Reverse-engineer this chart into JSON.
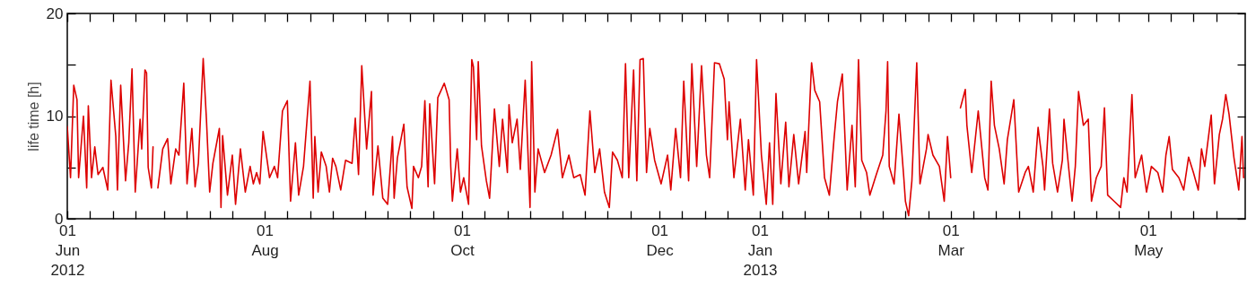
{
  "chart_data": {
    "type": "line",
    "ylabel": "life time [h]",
    "color": "#dd0000",
    "xlim": [
      "2012-06-01",
      "2013-05-31"
    ],
    "xticks": [
      {
        "value": "2012-06-01",
        "label": "01\nJun\n2012"
      },
      {
        "value": "2012-06-08",
        "label": null
      },
      {
        "value": "2012-06-15",
        "label": null
      },
      {
        "value": "2012-06-22",
        "label": null
      },
      {
        "value": "2012-07-01",
        "label": null
      },
      {
        "value": "2012-07-08",
        "label": null
      },
      {
        "value": "2012-07-15",
        "label": null
      },
      {
        "value": "2012-07-22",
        "label": null
      },
      {
        "value": "2012-08-01",
        "label": "01\nAug"
      },
      {
        "value": "2012-08-08",
        "label": null
      },
      {
        "value": "2012-08-15",
        "label": null
      },
      {
        "value": "2012-08-22",
        "label": null
      },
      {
        "value": "2012-09-01",
        "label": null
      },
      {
        "value": "2012-09-08",
        "label": null
      },
      {
        "value": "2012-09-15",
        "label": null
      },
      {
        "value": "2012-09-22",
        "label": null
      },
      {
        "value": "2012-10-01",
        "label": "01\nOct"
      },
      {
        "value": "2012-10-08",
        "label": null
      },
      {
        "value": "2012-10-15",
        "label": null
      },
      {
        "value": "2012-10-22",
        "label": null
      },
      {
        "value": "2012-11-01",
        "label": null
      },
      {
        "value": "2012-11-08",
        "label": null
      },
      {
        "value": "2012-11-15",
        "label": null
      },
      {
        "value": "2012-11-22",
        "label": null
      },
      {
        "value": "2012-12-01",
        "label": "01\nDec"
      },
      {
        "value": "2012-12-08",
        "label": null
      },
      {
        "value": "2012-12-15",
        "label": null
      },
      {
        "value": "2012-12-22",
        "label": null
      },
      {
        "value": "2013-01-01",
        "label": "01\nJan\n2013"
      },
      {
        "value": "2013-01-08",
        "label": null
      },
      {
        "value": "2013-01-15",
        "label": null
      },
      {
        "value": "2013-01-22",
        "label": null
      },
      {
        "value": "2013-02-01",
        "label": null
      },
      {
        "value": "2013-02-08",
        "label": null
      },
      {
        "value": "2013-02-15",
        "label": null
      },
      {
        "value": "2013-02-22",
        "label": null
      },
      {
        "value": "2013-03-01",
        "label": "01\nMar"
      },
      {
        "value": "2013-03-08",
        "label": null
      },
      {
        "value": "2013-03-15",
        "label": null
      },
      {
        "value": "2013-03-22",
        "label": null
      },
      {
        "value": "2013-04-01",
        "label": null
      },
      {
        "value": "2013-04-08",
        "label": null
      },
      {
        "value": "2013-04-15",
        "label": null
      },
      {
        "value": "2013-04-22",
        "label": null
      },
      {
        "value": "2013-05-01",
        "label": "01\nMay"
      },
      {
        "value": "2013-05-08",
        "label": null
      },
      {
        "value": "2013-05-15",
        "label": null
      },
      {
        "value": "2013-05-22",
        "label": null
      }
    ],
    "ylim": [
      0,
      20
    ],
    "yticks": [
      0,
      {
        "value": 5,
        "label": null
      },
      10,
      {
        "value": 15,
        "label": null
      },
      20
    ],
    "x": [
      "2012-06-01T00:00",
      "2012-06-02T00:00",
      "2012-06-03T00:00",
      "2012-06-04T00:00",
      "2012-06-04T12:00",
      "2012-06-06T00:00",
      "2012-06-07T00:00",
      "2012-06-07T12:00",
      "2012-06-08T12:00",
      "2012-06-09T12:00",
      "2012-06-10T12:00",
      "2012-06-12T00:00",
      "2012-06-13T12:00",
      "2012-06-14T12:00",
      "2012-06-16T00:00",
      "2012-06-16T12:00",
      "2012-06-17T12:00",
      "2012-06-19T00:00",
      "2012-06-20T00:00",
      "2012-06-21T00:00",
      "2012-06-22T00:00",
      "2012-06-23T12:00",
      "2012-06-24T00:00",
      "2012-06-25T00:00",
      "2012-06-25T12:00",
      "2012-06-26T00:00",
      "2012-06-27T00:00",
      "2012-06-27T12:00",
      "2012-06-28T00:00",
      "2012-06-29T00:00",
      "2012-06-30T12:00",
      "2012-07-02T00:00",
      "2012-07-03T00:00",
      "2012-07-04T12:00",
      "2012-07-05T12:00",
      "2012-07-07T00:00",
      "2012-07-08T00:00",
      "2012-07-09T12:00",
      "2012-07-10T12:00",
      "2012-07-11T12:00",
      "2012-07-13T00:00",
      "2012-07-14T00:00",
      "2012-07-15T00:00",
      "2012-07-16T00:00",
      "2012-07-18T00:00",
      "2012-07-18T12:00",
      "2012-07-19T00:00",
      "2012-07-20T12:00",
      "2012-07-22T00:00",
      "2012-07-23T00:00",
      "2012-07-24T12:00",
      "2012-07-26T00:00",
      "2012-07-27T12:00",
      "2012-07-28T12:00",
      "2012-07-29T12:00",
      "2012-07-30T12:00",
      "2012-07-31T12:00",
      "2012-08-02T12:00",
      "2012-08-04T00:00",
      "2012-08-05T00:00",
      "2012-08-06T12:00",
      "2012-08-08T00:00",
      "2012-08-09T00:00",
      "2012-08-10T12:00",
      "2012-08-11T12:00",
      "2012-08-13T00:00",
      "2012-08-15T00:00",
      "2012-08-16T00:00",
      "2012-08-16T12:00",
      "2012-08-17T12:00",
      "2012-08-18T12:00",
      "2012-08-20T00:00",
      "2012-08-21T00:00",
      "2012-08-22T00:00",
      "2012-08-23T00:00",
      "2012-08-24T12:00",
      "2012-08-26T00:00",
      "2012-08-28T00:00",
      "2012-08-29T00:00",
      "2012-08-30T00:00",
      "2012-08-31T00:00",
      "2012-09-01T12:00",
      "2012-09-03T00:00",
      "2012-09-03T12:00",
      "2012-09-05T00:00",
      "2012-09-06T12:00",
      "2012-09-08T00:00",
      "2012-09-09T12:00",
      "2012-09-10T00:00",
      "2012-09-11T00:00",
      "2012-09-13T00:00",
      "2012-09-14T00:00",
      "2012-09-15T12:00",
      "2012-09-16T00:00",
      "2012-09-17T12:00",
      "2012-09-18T12:00",
      "2012-09-19T12:00",
      "2012-09-20T12:00",
      "2012-09-21T00:00",
      "2012-09-22T12:00",
      "2012-09-23T12:00",
      "2012-09-25T12:00",
      "2012-09-27T00:00",
      "2012-09-27T12:00",
      "2012-09-28T00:00",
      "2012-09-29T12:00",
      "2012-09-30T12:00",
      "2012-10-01T12:00",
      "2012-10-03T00:00",
      "2012-10-04T00:00",
      "2012-10-04T12:00",
      "2012-10-05T12:00",
      "2012-10-06T00:00",
      "2012-10-07T00:00",
      "2012-10-08T12:00",
      "2012-10-09T12:00",
      "2012-10-11T00:00",
      "2012-10-12T12:00",
      "2012-10-13T12:00",
      "2012-10-15T00:00",
      "2012-10-15T12:00",
      "2012-10-16T12:00",
      "2012-10-18T00:00",
      "2012-10-19T00:00",
      "2012-10-20T12:00",
      "2012-10-22T00:00",
      "2012-10-22T12:00",
      "2012-10-23T12:00",
      "2012-10-24T12:00",
      "2012-10-26T12:00",
      "2012-10-28T12:00",
      "2012-10-30T12:00",
      "2012-11-01T00:00",
      "2012-11-03T00:00",
      "2012-11-04T12:00",
      "2012-11-06T12:00",
      "2012-11-08T00:00",
      "2012-11-09T12:00",
      "2012-11-11T00:00",
      "2012-11-12T12:00",
      "2012-11-14T00:00",
      "2012-11-15T12:00",
      "2012-11-16T12:00",
      "2012-11-18T00:00",
      "2012-11-19T12:00",
      "2012-11-20T12:00",
      "2012-11-21T12:00",
      "2012-11-23T00:00",
      "2012-11-24T00:00",
      "2012-11-25T00:00",
      "2012-11-26T00:00",
      "2012-11-27T00:00",
      "2012-11-28T00:00",
      "2012-11-29T12:00",
      "2012-12-01T12:00",
      "2012-12-03T12:00",
      "2012-12-04T12:00",
      "2012-12-06T00:00",
      "2012-12-07T12:00",
      "2012-12-08T12:00",
      "2012-12-10T00:00",
      "2012-12-11T00:00",
      "2012-12-12T12:00",
      "2012-12-14T00:00",
      "2012-12-15T12:00",
      "2012-12-16T12:00",
      "2012-12-18T00:00",
      "2012-12-19T12:00",
      "2012-12-21T00:00",
      "2012-12-22T00:00",
      "2012-12-22T12:00",
      "2012-12-24T00:00",
      "2012-12-26T00:00",
      "2012-12-27T12:00",
      "2012-12-28T12:00",
      "2012-12-30T00:00",
      "2012-12-31T00:00",
      "2013-01-01T12:00",
      "2013-01-03T00:00",
      "2013-01-04T00:00",
      "2013-01-05T00:00",
      "2013-01-06T00:00",
      "2013-01-07T12:00",
      "2013-01-09T00:00",
      "2013-01-10T00:00",
      "2013-01-11T12:00",
      "2013-01-13T00:00",
      "2013-01-15T00:00",
      "2013-01-15T12:00",
      "2013-01-17T00:00",
      "2013-01-18T00:00",
      "2013-01-19T12:00",
      "2013-01-21T00:00",
      "2013-01-22T12:00",
      "2013-01-24T00:00",
      "2013-01-25T00:00",
      "2013-01-26T12:00",
      "2013-01-28T00:00",
      "2013-01-29T12:00",
      "2013-01-30T12:00",
      "2013-01-31T12:00",
      "2013-02-01T12:00",
      "2013-02-03T00:00",
      "2013-02-04T00:00",
      "2013-02-06T00:00",
      "2013-02-08T00:00",
      "2013-02-09T00:00",
      "2013-02-09T12:00",
      "2013-02-10T00:00",
      "2013-02-11T12:00",
      "2013-02-13T00:00",
      "2013-02-14T12:00",
      "2013-02-15T00:00",
      "2013-02-16T00:00",
      "2013-02-17T00:00",
      "2013-02-18T12:00",
      "2013-02-19T12:00",
      "2013-02-21T12:00",
      "2013-02-22T00:00",
      "2013-02-23T12:00",
      "2013-02-25T12:00",
      "2013-02-27T00:00",
      "2013-02-28T00:00",
      "2013-03-01T00:00",
      "2013-03-02T00:00",
      "2013-03-04T00:00",
      "2013-03-05T12:00",
      "2013-03-06T00:00",
      "2013-03-07T12:00",
      "2013-03-09T12:00",
      "2013-03-11T12:00",
      "2013-03-12T12:00",
      "2013-03-13T12:00",
      "2013-03-14T12:00",
      "2013-03-16T00:00",
      "2013-03-17T12:00",
      "2013-03-18T12:00",
      "2013-03-20T12:00",
      "2013-03-22T00:00",
      "2013-03-24T00:00",
      "2013-03-25T00:00",
      "2013-03-26T12:00",
      "2013-03-28T00:00",
      "2013-03-29T12:00",
      "2013-03-30T00:00",
      "2013-03-31T12:00",
      "2013-04-01T12:00",
      "2013-04-03T00:00",
      "2013-04-04T12:00",
      "2013-04-05T00:00",
      "2013-04-06T12:00",
      "2013-04-07T12:00",
      "2013-04-08T12:00",
      "2013-04-09T12:00",
      "2013-04-11T00:00",
      "2013-04-12T12:00",
      "2013-04-13T12:00",
      "2013-04-15T00:00",
      "2013-04-16T12:00",
      "2013-04-17T12:00",
      "2013-04-18T12:00",
      "2013-04-20T12:00",
      "2013-04-22T12:00",
      "2013-04-23T12:00",
      "2013-04-24T12:00",
      "2013-04-26T00:00",
      "2013-04-27T00:00",
      "2013-04-29T00:00",
      "2013-04-30T12:00",
      "2013-05-02T00:00",
      "2013-05-04T00:00",
      "2013-05-05T12:00",
      "2013-05-06T12:00",
      "2013-05-07T12:00",
      "2013-05-08T12:00",
      "2013-05-10T12:00",
      "2013-05-12T00:00",
      "2013-05-13T12:00",
      "2013-05-15T00:00",
      "2013-05-16T12:00",
      "2013-05-17T12:00",
      "2013-05-18T12:00",
      "2013-05-20T12:00",
      "2013-05-21T12:00",
      "2013-05-23T00:00",
      "2013-05-24T00:00",
      "2013-05-25T00:00",
      "2013-05-26T00:00",
      "2013-05-27T12:00",
      "2013-05-29T00:00",
      "2013-05-30T00:00",
      "2013-05-30T12:00"
    ],
    "values": [
      9,
      4,
      13,
      11.6,
      4,
      10,
      3,
      11,
      4,
      7,
      4.3,
      5,
      2.8,
      13.5,
      8,
      2.8,
      13,
      3.7,
      7.4,
      14.6,
      2.6,
      9.7,
      6.8,
      14.5,
      14.2,
      5,
      3,
      7,
      null,
      3,
      6.8,
      7.8,
      3.4,
      6.8,
      6.2,
      13.2,
      3.4,
      8.8,
      3.1,
      5.4,
      15.6,
      9.7,
      2.6,
      5.4,
      8.8,
      1.1,
      8.1,
      2.3,
      6.2,
      1.4,
      6.8,
      2.6,
      5.1,
      3.4,
      4.5,
      3.4,
      8.5,
      4,
      5.1,
      4,
      10.5,
      11.5,
      1.7,
      7.4,
      2.3,
      5.1,
      13.4,
      2,
      8,
      2.6,
      6.5,
      5.1,
      2.6,
      5.9,
      5.1,
      2.8,
      5.7,
      5.4,
      9.8,
      4.3,
      14.9,
      6.8,
      12.4,
      2.3,
      7.1,
      2,
      1.4,
      8,
      2,
      5.9,
      9.2,
      3.1,
      1,
      5.1,
      4,
      5.1,
      11.5,
      3.1,
      11.2,
      3.4,
      11.8,
      13.2,
      11.6,
      5.1,
      1.7,
      6.8,
      2.6,
      4,
      1.4,
      15.5,
      14.8,
      7.7,
      15.3,
      7.1,
      3.7,
      2,
      10.7,
      5.1,
      9.7,
      4.5,
      11.1,
      7.4,
      9.7,
      4.8,
      13.5,
      1.1,
      15.3,
      2.6,
      6.8,
      4.5,
      6.2,
      8.7,
      4,
      6.2,
      4,
      4.3,
      2.3,
      10.5,
      4.5,
      6.8,
      2.6,
      1.1,
      6.5,
      5.7,
      4,
      15.1,
      4,
      14.5,
      3.7,
      15.5,
      15.6,
      4.5,
      8.8,
      5.7,
      3.4,
      6.2,
      2.8,
      8.8,
      4,
      13.4,
      3.7,
      15.1,
      5.1,
      14.9,
      6.2,
      4,
      15.2,
      15.1,
      13.6,
      7.7,
      11.4,
      4,
      9.7,
      2.8,
      7.7,
      2.3,
      15.5,
      6.2,
      1.4,
      7.4,
      1.4,
      12.2,
      3.4,
      9.4,
      3.1,
      8.2,
      3.4,
      8.5,
      4.5,
      15.2,
      12.5,
      11.4,
      4,
      2.3,
      8,
      11.4,
      14.1,
      2.8,
      9.1,
      3.1,
      15.5,
      5.7,
      4.5,
      2.3,
      4.3,
      6.2,
      10.5,
      15.3,
      5.1,
      3.4,
      10.2,
      4,
      1.7,
      0.3,
      3.7,
      15.2,
      3.4,
      6.8,
      8.2,
      6.2,
      5.1,
      1.7,
      8,
      4,
      null,
      10.8,
      12.6,
      9.1,
      4.5,
      10.5,
      4,
      2.8,
      13.4,
      9.1,
      6.8,
      3.4,
      7.7,
      11.6,
      2.6,
      4.5,
      5.1,
      2.6,
      8.9,
      5.1,
      2.8,
      10.7,
      5.4,
      2.6,
      5.7,
      9.7,
      4.8,
      1.7,
      5.1,
      12.4,
      9.1,
      9.7,
      1.7,
      4,
      5.1,
      10.8,
      2.3,
      1.7,
      1.1,
      4,
      2.6,
      12.1,
      4,
      6.2,
      2.6,
      5.1,
      4.5,
      2.6,
      6.2,
      8,
      4.8,
      4,
      2.8,
      6,
      4.5,
      2.8,
      6.8,
      5.1,
      10.1,
      3.4,
      8.2,
      9.7,
      12.1,
      10.2,
      6,
      2.8,
      8,
      4
    ]
  }
}
